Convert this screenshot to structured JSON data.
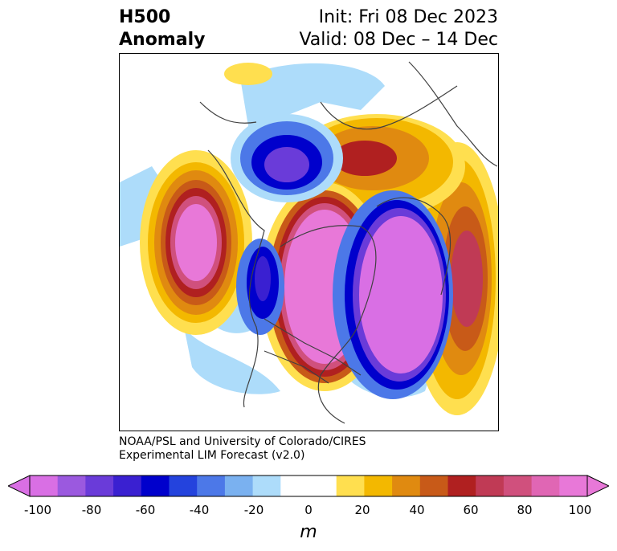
{
  "header": {
    "field": "H500",
    "kind": "Anomaly",
    "init": "Init: Fri 08 Dec 2023",
    "valid": "Valid: 08 Dec – 14 Dec"
  },
  "credit": {
    "line1": "NOAA/PSL and University of Colorado/CIRES",
    "line2": "Experimental LIM Forecast (v2.0)"
  },
  "colorbar": {
    "unit": "m",
    "ticks": [
      "-100",
      "-80",
      "-60",
      "-40",
      "-20",
      "0",
      "20",
      "40",
      "60",
      "80",
      "100"
    ],
    "colors": [
      "#d96fe4",
      "#9b59df",
      "#6a3bd9",
      "#3a20d1",
      "#0000cc",
      "#2443dd",
      "#4c78e8",
      "#7ab1f0",
      "#addcfa",
      "#ffffff",
      "#ffffff",
      "#ffdf4f",
      "#f3b800",
      "#e08a10",
      "#c85a18",
      "#b02020",
      "#c03a55",
      "#d0507d",
      "#e066b4",
      "#e878d8"
    ]
  },
  "map_features": [
    "arctic-high-anomaly",
    "east-pacific-high-anomaly",
    "north-atlantic-low-anomaly",
    "west-coast-low-anomaly",
    "europe-high-anomaly"
  ]
}
